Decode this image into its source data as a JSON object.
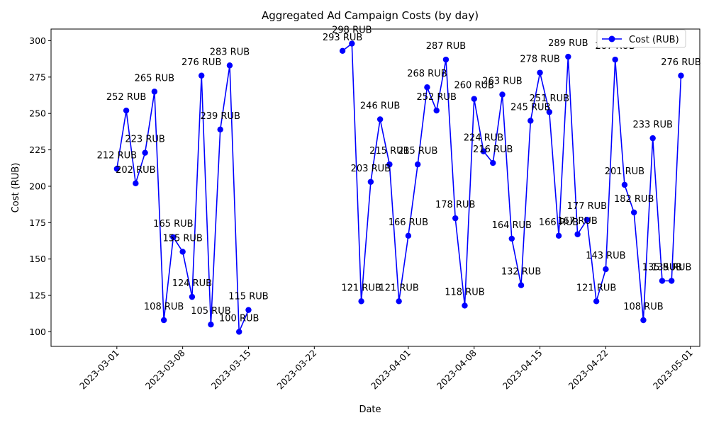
{
  "chart_data": {
    "type": "line",
    "title": "Aggregated Ad Campaign Costs (by day)",
    "xlabel": "Date",
    "ylabel": "Cost (RUB)",
    "xlim": [
      "2023-02-22",
      "2023-05-02"
    ],
    "ylim": [
      90,
      308
    ],
    "x_ticks": [
      "2023-03-01",
      "2023-03-08",
      "2023-03-15",
      "2023-03-22",
      "2023-04-01",
      "2023-04-08",
      "2023-04-15",
      "2023-04-22",
      "2023-05-01"
    ],
    "y_ticks": [
      100,
      125,
      150,
      175,
      200,
      225,
      250,
      275,
      300
    ],
    "grid": false,
    "legend": "top-right",
    "label_suffix": " RUB",
    "series": [
      {
        "name": "Cost (RUB)",
        "color": "#0000ff",
        "segments": [
          {
            "x": [
              "2023-03-01",
              "2023-03-02",
              "2023-03-03",
              "2023-03-04",
              "2023-03-05",
              "2023-03-06",
              "2023-03-07",
              "2023-03-08",
              "2023-03-09",
              "2023-03-10",
              "2023-03-11",
              "2023-03-12",
              "2023-03-13",
              "2023-03-14",
              "2023-03-15"
            ],
            "y": [
              212,
              252,
              202,
              223,
              265,
              108,
              165,
              155,
              124,
              276,
              105,
              239,
              283,
              100,
              115
            ]
          },
          {
            "x": [
              "2023-03-25",
              "2023-03-26",
              "2023-03-27",
              "2023-03-28",
              "2023-03-29",
              "2023-03-30",
              "2023-03-31",
              "2023-04-01",
              "2023-04-02",
              "2023-04-03",
              "2023-04-04",
              "2023-04-05",
              "2023-04-06",
              "2023-04-07",
              "2023-04-08",
              "2023-04-09",
              "2023-04-10",
              "2023-04-11",
              "2023-04-12",
              "2023-04-13",
              "2023-04-14",
              "2023-04-15",
              "2023-04-16",
              "2023-04-17",
              "2023-04-18",
              "2023-04-19",
              "2023-04-20",
              "2023-04-21",
              "2023-04-22",
              "2023-04-23",
              "2023-04-24",
              "2023-04-25",
              "2023-04-26",
              "2023-04-27",
              "2023-04-28",
              "2023-04-29",
              "2023-04-30"
            ],
            "y": [
              293,
              298,
              121,
              203,
              246,
              215,
              121,
              166,
              215,
              268,
              252,
              287,
              178,
              118,
              260,
              224,
              216,
              263,
              164,
              132,
              245,
              278,
              251,
              166,
              289,
              167,
              177,
              121,
              143,
              287,
              201,
              182,
              108,
              233,
              135,
              135,
              276
            ]
          }
        ]
      }
    ]
  }
}
